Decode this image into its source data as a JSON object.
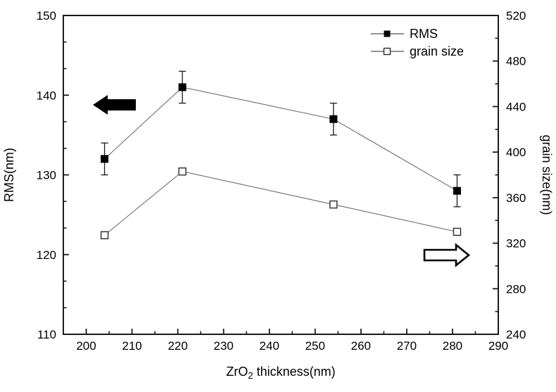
{
  "chart_data": {
    "type": "line",
    "title": "",
    "x": [
      204,
      221,
      254,
      281
    ],
    "series": [
      {
        "name": "RMS",
        "axis": "left",
        "marker": "filled-square",
        "values": [
          132,
          141,
          137,
          128
        ],
        "y_error": 2
      },
      {
        "name": "grain size",
        "axis": "right",
        "marker": "open-square",
        "values": [
          327,
          383,
          354,
          330
        ],
        "y_error": 0
      }
    ],
    "x_axis": {
      "label_pre": "ZrO",
      "label_sub": "2",
      "label_post": " thickness(nm)",
      "min": 195,
      "max": 290,
      "major_ticks": [
        200,
        210,
        220,
        230,
        240,
        250,
        260,
        270,
        280,
        290
      ],
      "minor_ticks": [
        205,
        215,
        225,
        235,
        245,
        255,
        265,
        275,
        285
      ]
    },
    "left_axis": {
      "label": "RMS(nm)",
      "min": 110,
      "max": 150,
      "major_ticks": [
        110,
        120,
        130,
        140,
        150
      ],
      "minor_divisions": 3
    },
    "right_axis": {
      "label": "grain size(nm)",
      "min": 240,
      "max": 520,
      "major_ticks": [
        240,
        280,
        320,
        360,
        400,
        440,
        480,
        520
      ],
      "minor_ticks": [
        260,
        300,
        340,
        380,
        420,
        460,
        500
      ]
    },
    "legend": {
      "position": "top-right-inside",
      "items": [
        {
          "label": "RMS",
          "marker": "filled-square"
        },
        {
          "label": "grain size",
          "marker": "open-square"
        }
      ]
    },
    "annotations": [
      {
        "type": "arrow",
        "direction": "left",
        "style": "filled",
        "refers_to": "RMS"
      },
      {
        "type": "arrow",
        "direction": "right",
        "style": "open",
        "refers_to": "grain size"
      }
    ],
    "grid": "off",
    "colors": {
      "line": "#6e6e6e",
      "marker": "#000000",
      "axis": "#1a1a1a",
      "text": "#000000",
      "background": "#ffffff"
    }
  }
}
